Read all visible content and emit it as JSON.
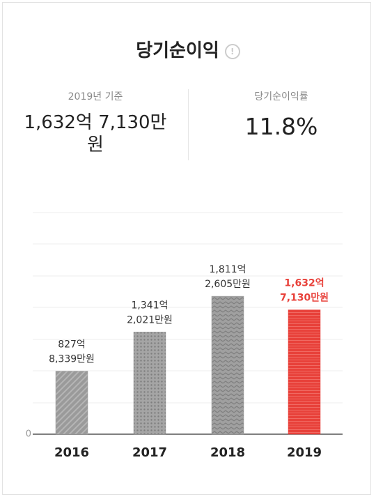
{
  "header": {
    "title": "당기순이익"
  },
  "summary": [
    {
      "label": "2019년 기준",
      "value": "1,632억 7,130만원"
    },
    {
      "label": "당기순이익률",
      "value": "11.8%"
    }
  ],
  "chart_data": {
    "type": "bar",
    "categories": [
      "2016",
      "2017",
      "2018",
      "2019"
    ],
    "values": [
      827.8339,
      1341.2021,
      1811.2605,
      1632.713
    ],
    "value_labels": [
      [
        "827억",
        "8,339만원"
      ],
      [
        "1,341억",
        "2,021만원"
      ],
      [
        "1,811억",
        "2,605만원"
      ],
      [
        "1,632억",
        "7,130만원"
      ]
    ],
    "colors": [
      "#9a9a9a",
      "#9a9a9a",
      "#9a9a9a",
      "#e8413a"
    ],
    "label_colors": [
      "#333333",
      "#333333",
      "#333333",
      "#e8413a"
    ],
    "ylim": [
      0,
      2910
    ],
    "yticks": [
      0
    ]
  }
}
